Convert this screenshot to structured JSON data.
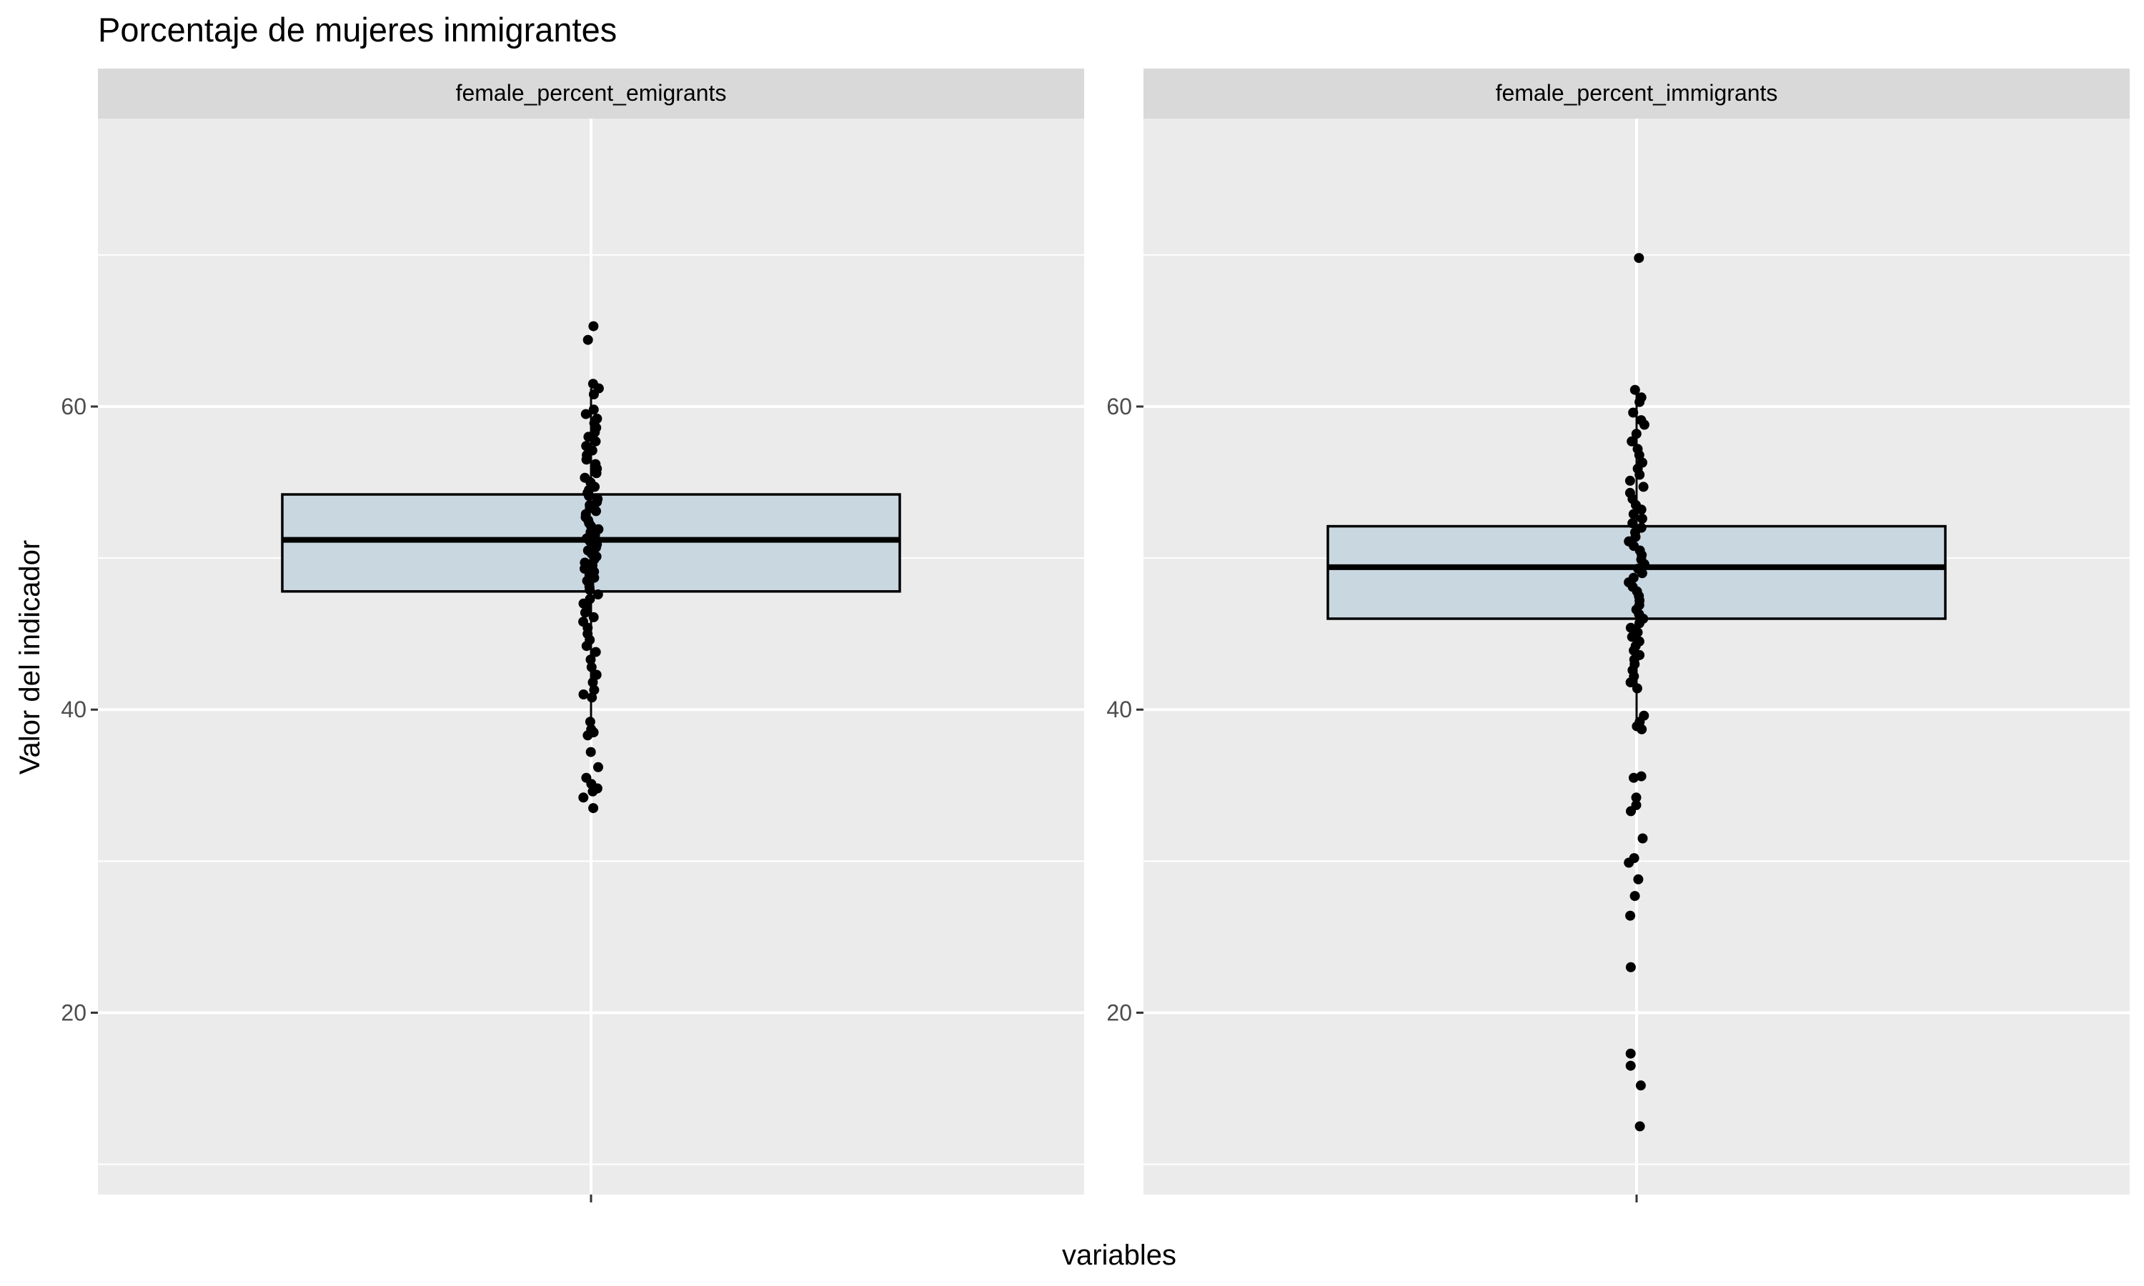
{
  "chart_data": {
    "type": "boxplot",
    "title": "Porcentaje de mujeres inmigrantes",
    "xlabel": "variables",
    "ylabel": "Valor del indicador",
    "ylim": [
      8,
      79
    ],
    "yticks": [
      20,
      40,
      60
    ],
    "grid": true,
    "legend": "none",
    "colors": {
      "panel_background": "#EBEBEB",
      "strip_background": "#D9D9D9",
      "gridline": "#FFFFFF",
      "box_fill": "#C9D7E1",
      "box_outline": "#000000",
      "point": "#000000"
    },
    "panels": [
      {
        "strip_label": "female_percent_emigrants",
        "box": {
          "whisker_low": 39.2,
          "q1": 47.8,
          "median": 51.2,
          "q3": 54.2,
          "whisker_high": 61.2
        },
        "points": [
          65.3,
          64.4,
          61.5,
          61.2,
          60.8,
          59.8,
          59.5,
          59.2,
          58.9,
          58.6,
          58.3,
          58.0,
          57.7,
          57.4,
          57.1,
          56.8,
          56.5,
          56.2,
          55.9,
          55.6,
          55.3,
          55.0,
          54.7,
          54.5,
          54.3,
          54.1,
          53.9,
          53.7,
          53.5,
          53.3,
          53.1,
          52.9,
          52.7,
          52.5,
          52.3,
          52.1,
          51.9,
          51.7,
          51.5,
          51.3,
          51.1,
          50.9,
          50.7,
          50.5,
          50.3,
          50.1,
          49.9,
          49.7,
          49.5,
          49.3,
          49.1,
          48.9,
          48.7,
          48.5,
          48.3,
          48.1,
          47.9,
          47.6,
          47.3,
          47.0,
          46.7,
          46.4,
          46.1,
          45.8,
          45.4,
          45.0,
          44.6,
          44.2,
          43.8,
          43.3,
          42.8,
          42.3,
          41.8,
          41.3,
          41.0,
          40.8,
          39.2,
          38.7,
          38.5,
          38.3,
          37.2,
          36.2,
          35.5,
          35.1,
          34.8,
          34.6,
          34.2,
          33.5
        ]
      },
      {
        "strip_label": "female_percent_immigrants",
        "box": {
          "whisker_low": 38.6,
          "q1": 46.0,
          "median": 49.4,
          "q3": 52.1,
          "whisker_high": 61.0
        },
        "points": [
          69.8,
          61.1,
          60.6,
          60.3,
          59.6,
          59.1,
          58.8,
          58.2,
          57.7,
          57.2,
          56.8,
          56.3,
          55.9,
          55.5,
          55.1,
          54.7,
          54.3,
          53.9,
          53.5,
          53.2,
          52.9,
          52.6,
          52.3,
          52.0,
          51.7,
          51.4,
          51.1,
          50.8,
          50.5,
          50.2,
          49.9,
          49.6,
          49.3,
          49.0,
          48.7,
          48.4,
          48.1,
          47.8,
          47.5,
          47.2,
          46.9,
          46.6,
          46.3,
          46.0,
          45.7,
          45.4,
          45.1,
          44.8,
          44.5,
          44.2,
          43.9,
          43.6,
          43.3,
          43.0,
          42.6,
          42.2,
          41.8,
          41.4,
          39.6,
          39.2,
          38.9,
          38.7,
          35.6,
          35.5,
          34.2,
          33.7,
          33.3,
          31.5,
          30.2,
          29.9,
          28.8,
          27.7,
          26.4,
          23.0,
          17.3,
          16.5,
          15.2,
          12.5
        ]
      }
    ]
  }
}
